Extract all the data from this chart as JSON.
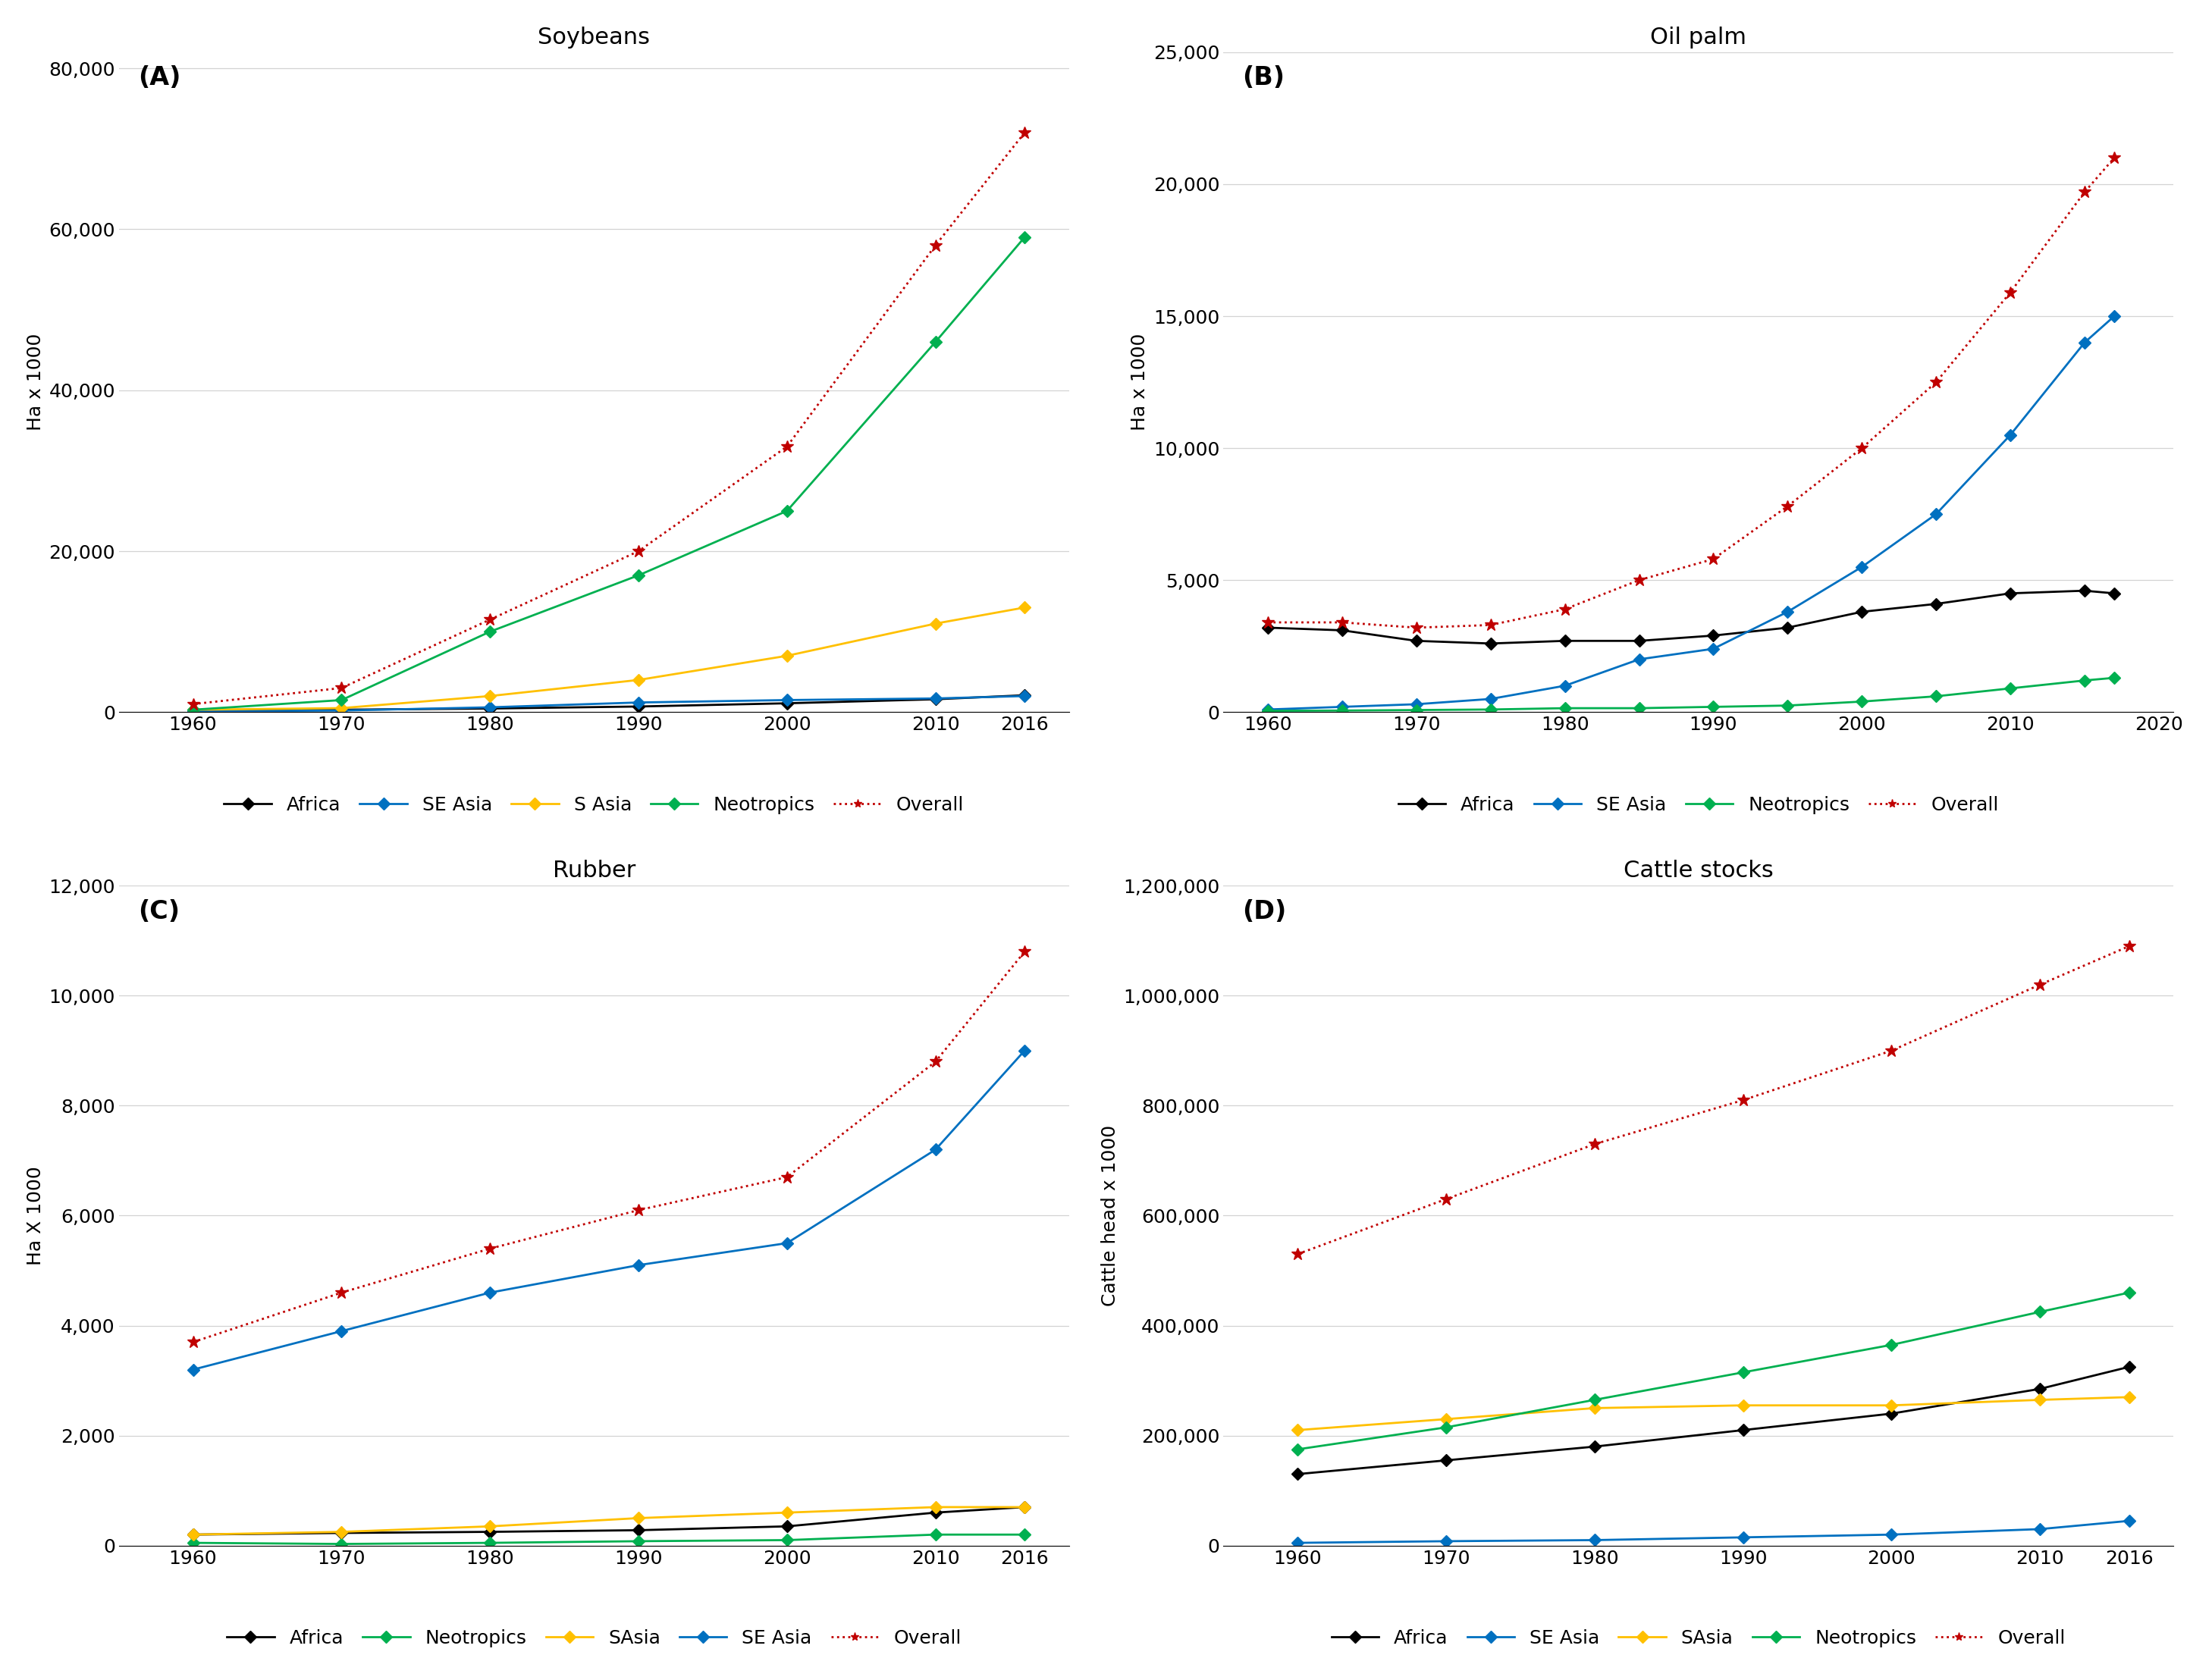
{
  "years_A": [
    1960,
    1970,
    1980,
    1990,
    2000,
    2010,
    2016
  ],
  "soybeans": {
    "Africa": [
      250,
      300,
      450,
      700,
      1100,
      1600,
      2100
    ],
    "SE_Asia": [
      100,
      200,
      600,
      1200,
      1500,
      1700,
      2000
    ],
    "S_Asia": [
      300,
      500,
      2000,
      4000,
      7000,
      11000,
      13000
    ],
    "Neotropics": [
      300,
      1500,
      10000,
      17000,
      25000,
      46000,
      59000
    ],
    "Overall": [
      1000,
      3000,
      11500,
      20000,
      33000,
      58000,
      72000
    ]
  },
  "years_B": [
    1960,
    1965,
    1970,
    1975,
    1980,
    1985,
    1990,
    1995,
    2000,
    2005,
    2010,
    2015,
    2017
  ],
  "oil_palm": {
    "Africa": [
      3200,
      3100,
      2700,
      2600,
      2700,
      2700,
      2900,
      3200,
      3800,
      4100,
      4500,
      4600,
      4500
    ],
    "SE_Asia": [
      100,
      200,
      300,
      500,
      1000,
      2000,
      2400,
      3800,
      5500,
      7500,
      10500,
      14000,
      15000
    ],
    "Neotropics": [
      50,
      60,
      80,
      100,
      150,
      150,
      200,
      250,
      400,
      600,
      900,
      1200,
      1300
    ],
    "Overall": [
      3400,
      3400,
      3200,
      3300,
      3900,
      5000,
      5800,
      7800,
      10000,
      12500,
      15900,
      19700,
      21000
    ]
  },
  "years_C": [
    1960,
    1970,
    1980,
    1990,
    2000,
    2010,
    2016
  ],
  "rubber": {
    "Africa": [
      200,
      230,
      250,
      280,
      350,
      600,
      700
    ],
    "Neotropics": [
      50,
      30,
      50,
      80,
      100,
      200,
      200
    ],
    "SAsia": [
      200,
      250,
      350,
      500,
      600,
      700,
      700
    ],
    "SE_Asia": [
      3200,
      3900,
      4600,
      5100,
      5500,
      7200,
      9000
    ],
    "Overall": [
      3700,
      4600,
      5400,
      6100,
      6700,
      8800,
      10800
    ]
  },
  "years_D": [
    1960,
    1970,
    1980,
    1990,
    2000,
    2010,
    2016
  ],
  "cattle": {
    "Africa": [
      130000,
      155000,
      180000,
      210000,
      240000,
      285000,
      325000
    ],
    "SE_Asia": [
      5000,
      8000,
      10000,
      15000,
      20000,
      30000,
      45000
    ],
    "SAsia": [
      210000,
      230000,
      250000,
      255000,
      255000,
      265000,
      270000
    ],
    "Neotropics": [
      175000,
      215000,
      265000,
      315000,
      365000,
      425000,
      460000
    ],
    "Overall": [
      530000,
      630000,
      730000,
      810000,
      900000,
      1020000,
      1090000
    ]
  },
  "colors": {
    "Africa": "#000000",
    "SE_Asia": "#0070C0",
    "S_Asia": "#FFC000",
    "Neotropics": "#00B050",
    "Overall": "#C00000",
    "SAsia": "#FFC000"
  },
  "panel_label_fontsize": 24,
  "title_fontsize": 22,
  "tick_fontsize": 18,
  "legend_fontsize": 18,
  "ylabel_fontsize": 18
}
